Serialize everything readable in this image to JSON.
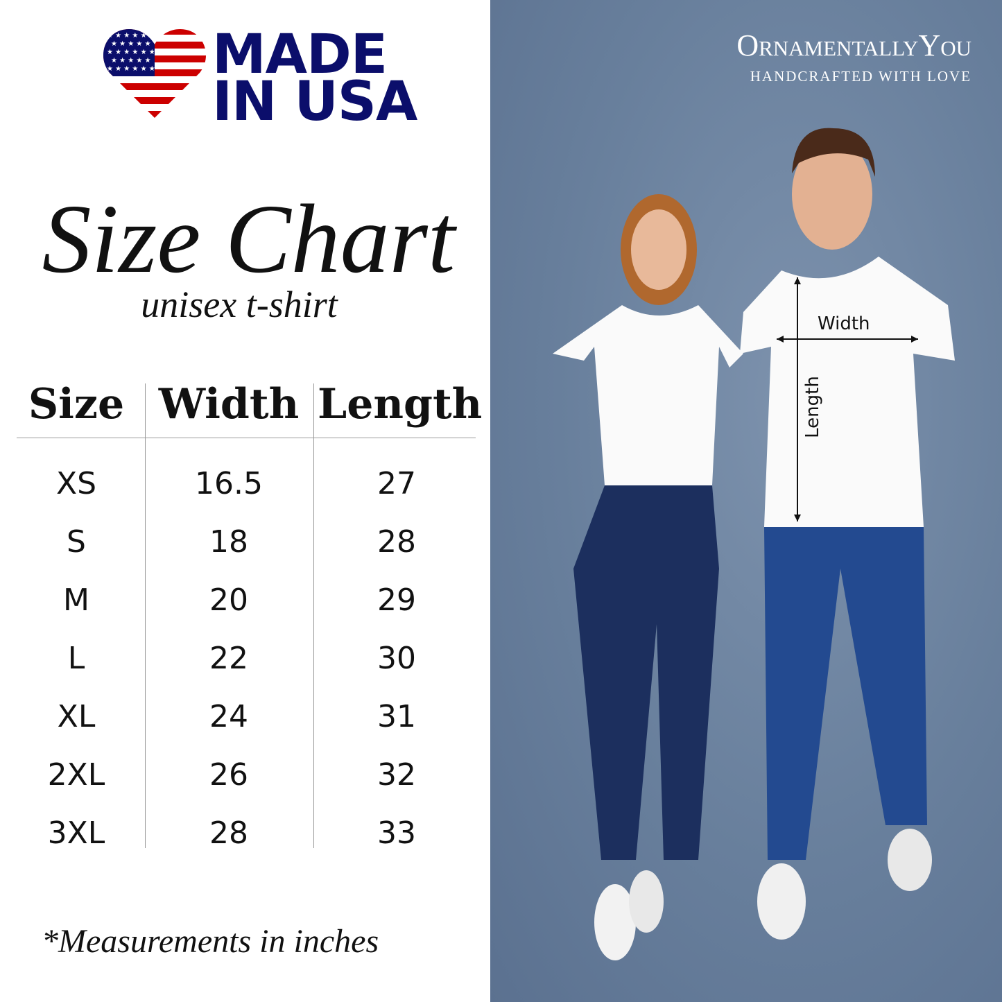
{
  "badge": {
    "line1": "MADE",
    "line2": "IN USA",
    "icon": "us-flag-heart-icon",
    "colors": {
      "navy": "#0b0e6b",
      "red": "#cc0000"
    }
  },
  "title": "Size Chart",
  "subtitle": "unisex t-shirt",
  "table": {
    "headers": [
      "Size",
      "Width",
      "Length"
    ],
    "rows": [
      [
        "XS",
        "16.5",
        "27"
      ],
      [
        "S",
        "18",
        "28"
      ],
      [
        "M",
        "20",
        "29"
      ],
      [
        "L",
        "22",
        "30"
      ],
      [
        "XL",
        "24",
        "31"
      ],
      [
        "2XL",
        "26",
        "32"
      ],
      [
        "3XL",
        "28",
        "33"
      ]
    ]
  },
  "note": "*Measurements in inches",
  "brand": {
    "name": "OrnamentallyYou",
    "tagline": "HANDCRAFTED WITH LOVE"
  },
  "photo": {
    "annotations": {
      "width": "Width",
      "length": "Length"
    },
    "background": "#6e84a0"
  }
}
